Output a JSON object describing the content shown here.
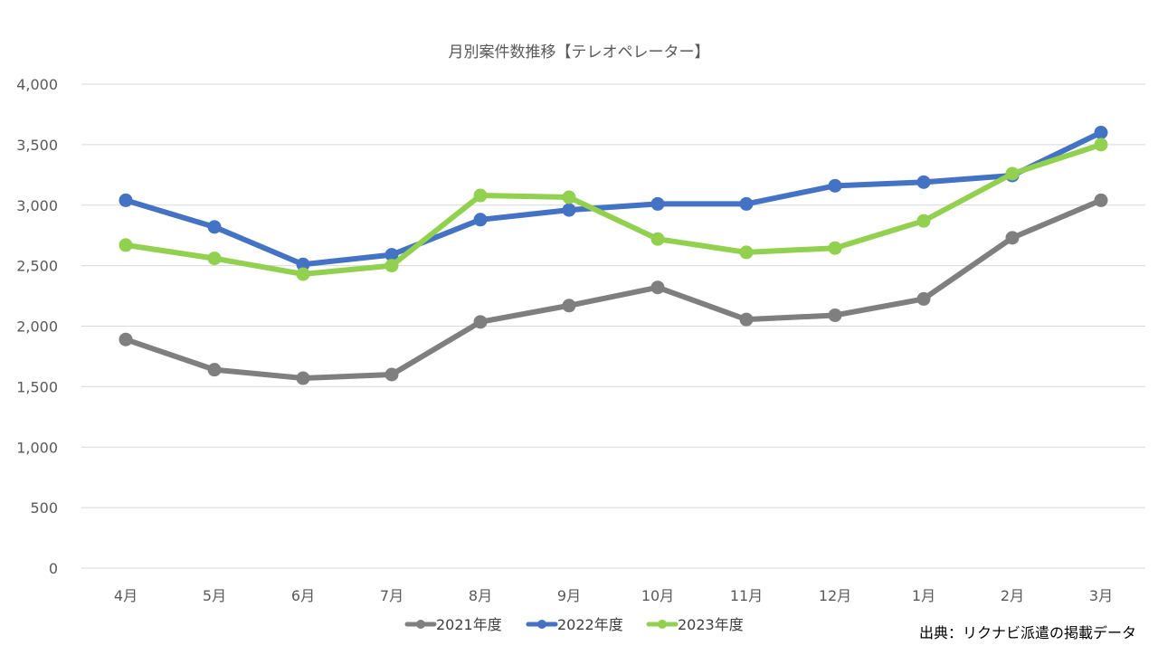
{
  "chart_data": {
    "type": "line",
    "title": "月別案件数推移【テレオペレーター】",
    "categories": [
      "4月",
      "5月",
      "6月",
      "7月",
      "8月",
      "9月",
      "10月",
      "11月",
      "12月",
      "1月",
      "2月",
      "3月"
    ],
    "ylim": [
      0,
      4000
    ],
    "yticks": [
      0,
      500,
      1000,
      1500,
      2000,
      2500,
      3000,
      3500,
      4000
    ],
    "ytick_labels": [
      "0",
      "500",
      "1,000",
      "1,500",
      "2,000",
      "2,500",
      "3,000",
      "3,500",
      "4,000"
    ],
    "grid": true,
    "legend_position": "bottom",
    "series": [
      {
        "name": "2021年度",
        "color": "#7f7f7f",
        "values": [
          1890,
          1640,
          1570,
          1600,
          2035,
          2170,
          2320,
          2055,
          2090,
          2225,
          2730,
          3040
        ]
      },
      {
        "name": "2022年度",
        "color": "#4472c4",
        "values": [
          3040,
          2820,
          2510,
          2590,
          2880,
          2960,
          3010,
          3010,
          3160,
          3190,
          3245,
          3600
        ]
      },
      {
        "name": "2023年度",
        "color": "#92d050",
        "values": [
          2670,
          2560,
          2430,
          2500,
          3080,
          3065,
          2720,
          2610,
          2645,
          2870,
          3260,
          3500
        ]
      }
    ],
    "source": "出典：リクナビ派遣の掲載データ"
  }
}
